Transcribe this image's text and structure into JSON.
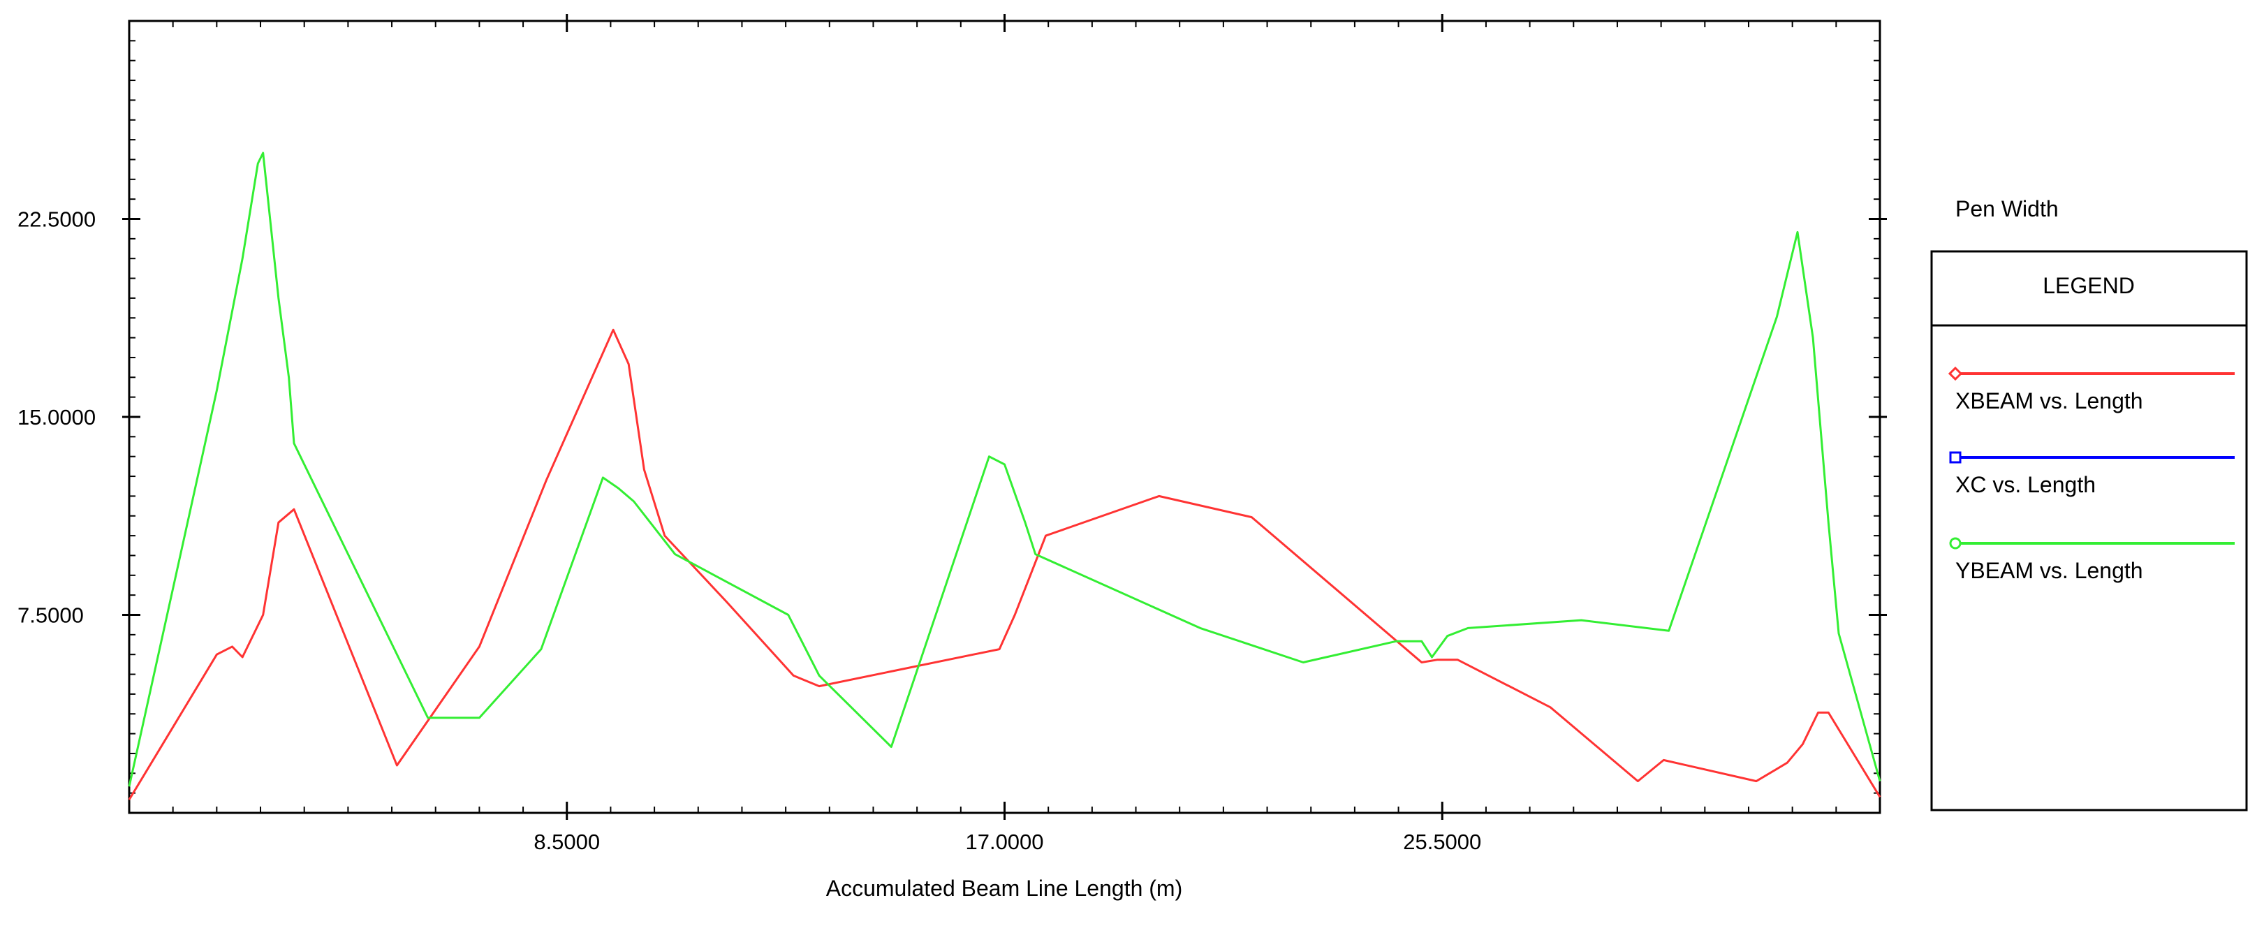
{
  "pen_width_label": "Pen Width",
  "chart_data": {
    "type": "line",
    "title": "",
    "xlabel": "Accumulated Beam Line Length (m)",
    "ylabel": "",
    "xlim": [
      0,
      34
    ],
    "ylim": [
      0,
      30
    ],
    "x_ticks": [
      8.5,
      17,
      25.5
    ],
    "x_tick_labels": [
      "8.5000",
      "17.0000",
      "25.5000"
    ],
    "y_ticks": [
      7.5,
      15,
      22.5
    ],
    "y_tick_labels": [
      "7.5000",
      "15.0000",
      "22.5000"
    ],
    "grid": false,
    "legend": {
      "title": "LEGEND",
      "placement": "right"
    },
    "series": [
      {
        "name": "XBEAM vs. Length",
        "color": "#ff3333",
        "marker": "diamond",
        "x": [
          0,
          1.7,
          2.0,
          2.2,
          2.6,
          2.9,
          3.2,
          5.2,
          6.8,
          8.1,
          9.4,
          9.7,
          10.0,
          10.4,
          11.6,
          12.9,
          13.4,
          16.9,
          17.2,
          17.5,
          17.8,
          20.0,
          21.8,
          25.1,
          25.4,
          25.8,
          27.6,
          29.3,
          29.8,
          31.6,
          32.2,
          32.5,
          32.8,
          33.0,
          34.0
        ],
        "y": [
          0.5,
          6.0,
          6.3,
          5.9,
          7.5,
          11.0,
          11.5,
          1.8,
          6.3,
          12.6,
          18.3,
          17.0,
          13.0,
          10.5,
          8.0,
          5.2,
          4.8,
          6.2,
          7.5,
          9.0,
          10.5,
          12.0,
          11.2,
          5.7,
          5.8,
          5.8,
          4.0,
          1.2,
          2.0,
          1.2,
          1.9,
          2.6,
          3.8,
          3.8,
          0.6
        ]
      },
      {
        "name": "XC vs. Length",
        "color": "#0000ff",
        "marker": "square",
        "x": [],
        "y": []
      },
      {
        "name": "YBEAM vs. Length",
        "color": "#33ee33",
        "marker": "circle",
        "x": [
          0,
          1.7,
          2.2,
          2.5,
          2.6,
          2.9,
          3.1,
          3.2,
          5.8,
          6.8,
          8.0,
          9.2,
          9.5,
          9.8,
          10.6,
          12.8,
          13.4,
          14.8,
          16.7,
          17.0,
          17.4,
          17.6,
          20.8,
          22.8,
          24.6,
          25.1,
          25.3,
          25.6,
          26.0,
          28.2,
          29.9,
          32.0,
          32.4,
          32.7,
          33.0,
          33.2,
          34.0
        ],
        "y": [
          1.0,
          16.0,
          21.0,
          24.6,
          25.0,
          19.5,
          16.5,
          14.0,
          3.6,
          3.6,
          6.2,
          12.7,
          12.3,
          11.8,
          9.8,
          7.5,
          5.2,
          2.5,
          13.5,
          13.2,
          11.0,
          9.8,
          7.0,
          5.7,
          6.5,
          6.5,
          5.9,
          6.7,
          7.0,
          7.3,
          6.9,
          18.8,
          22.0,
          18.0,
          11.0,
          6.8,
          1.2
        ]
      }
    ]
  }
}
